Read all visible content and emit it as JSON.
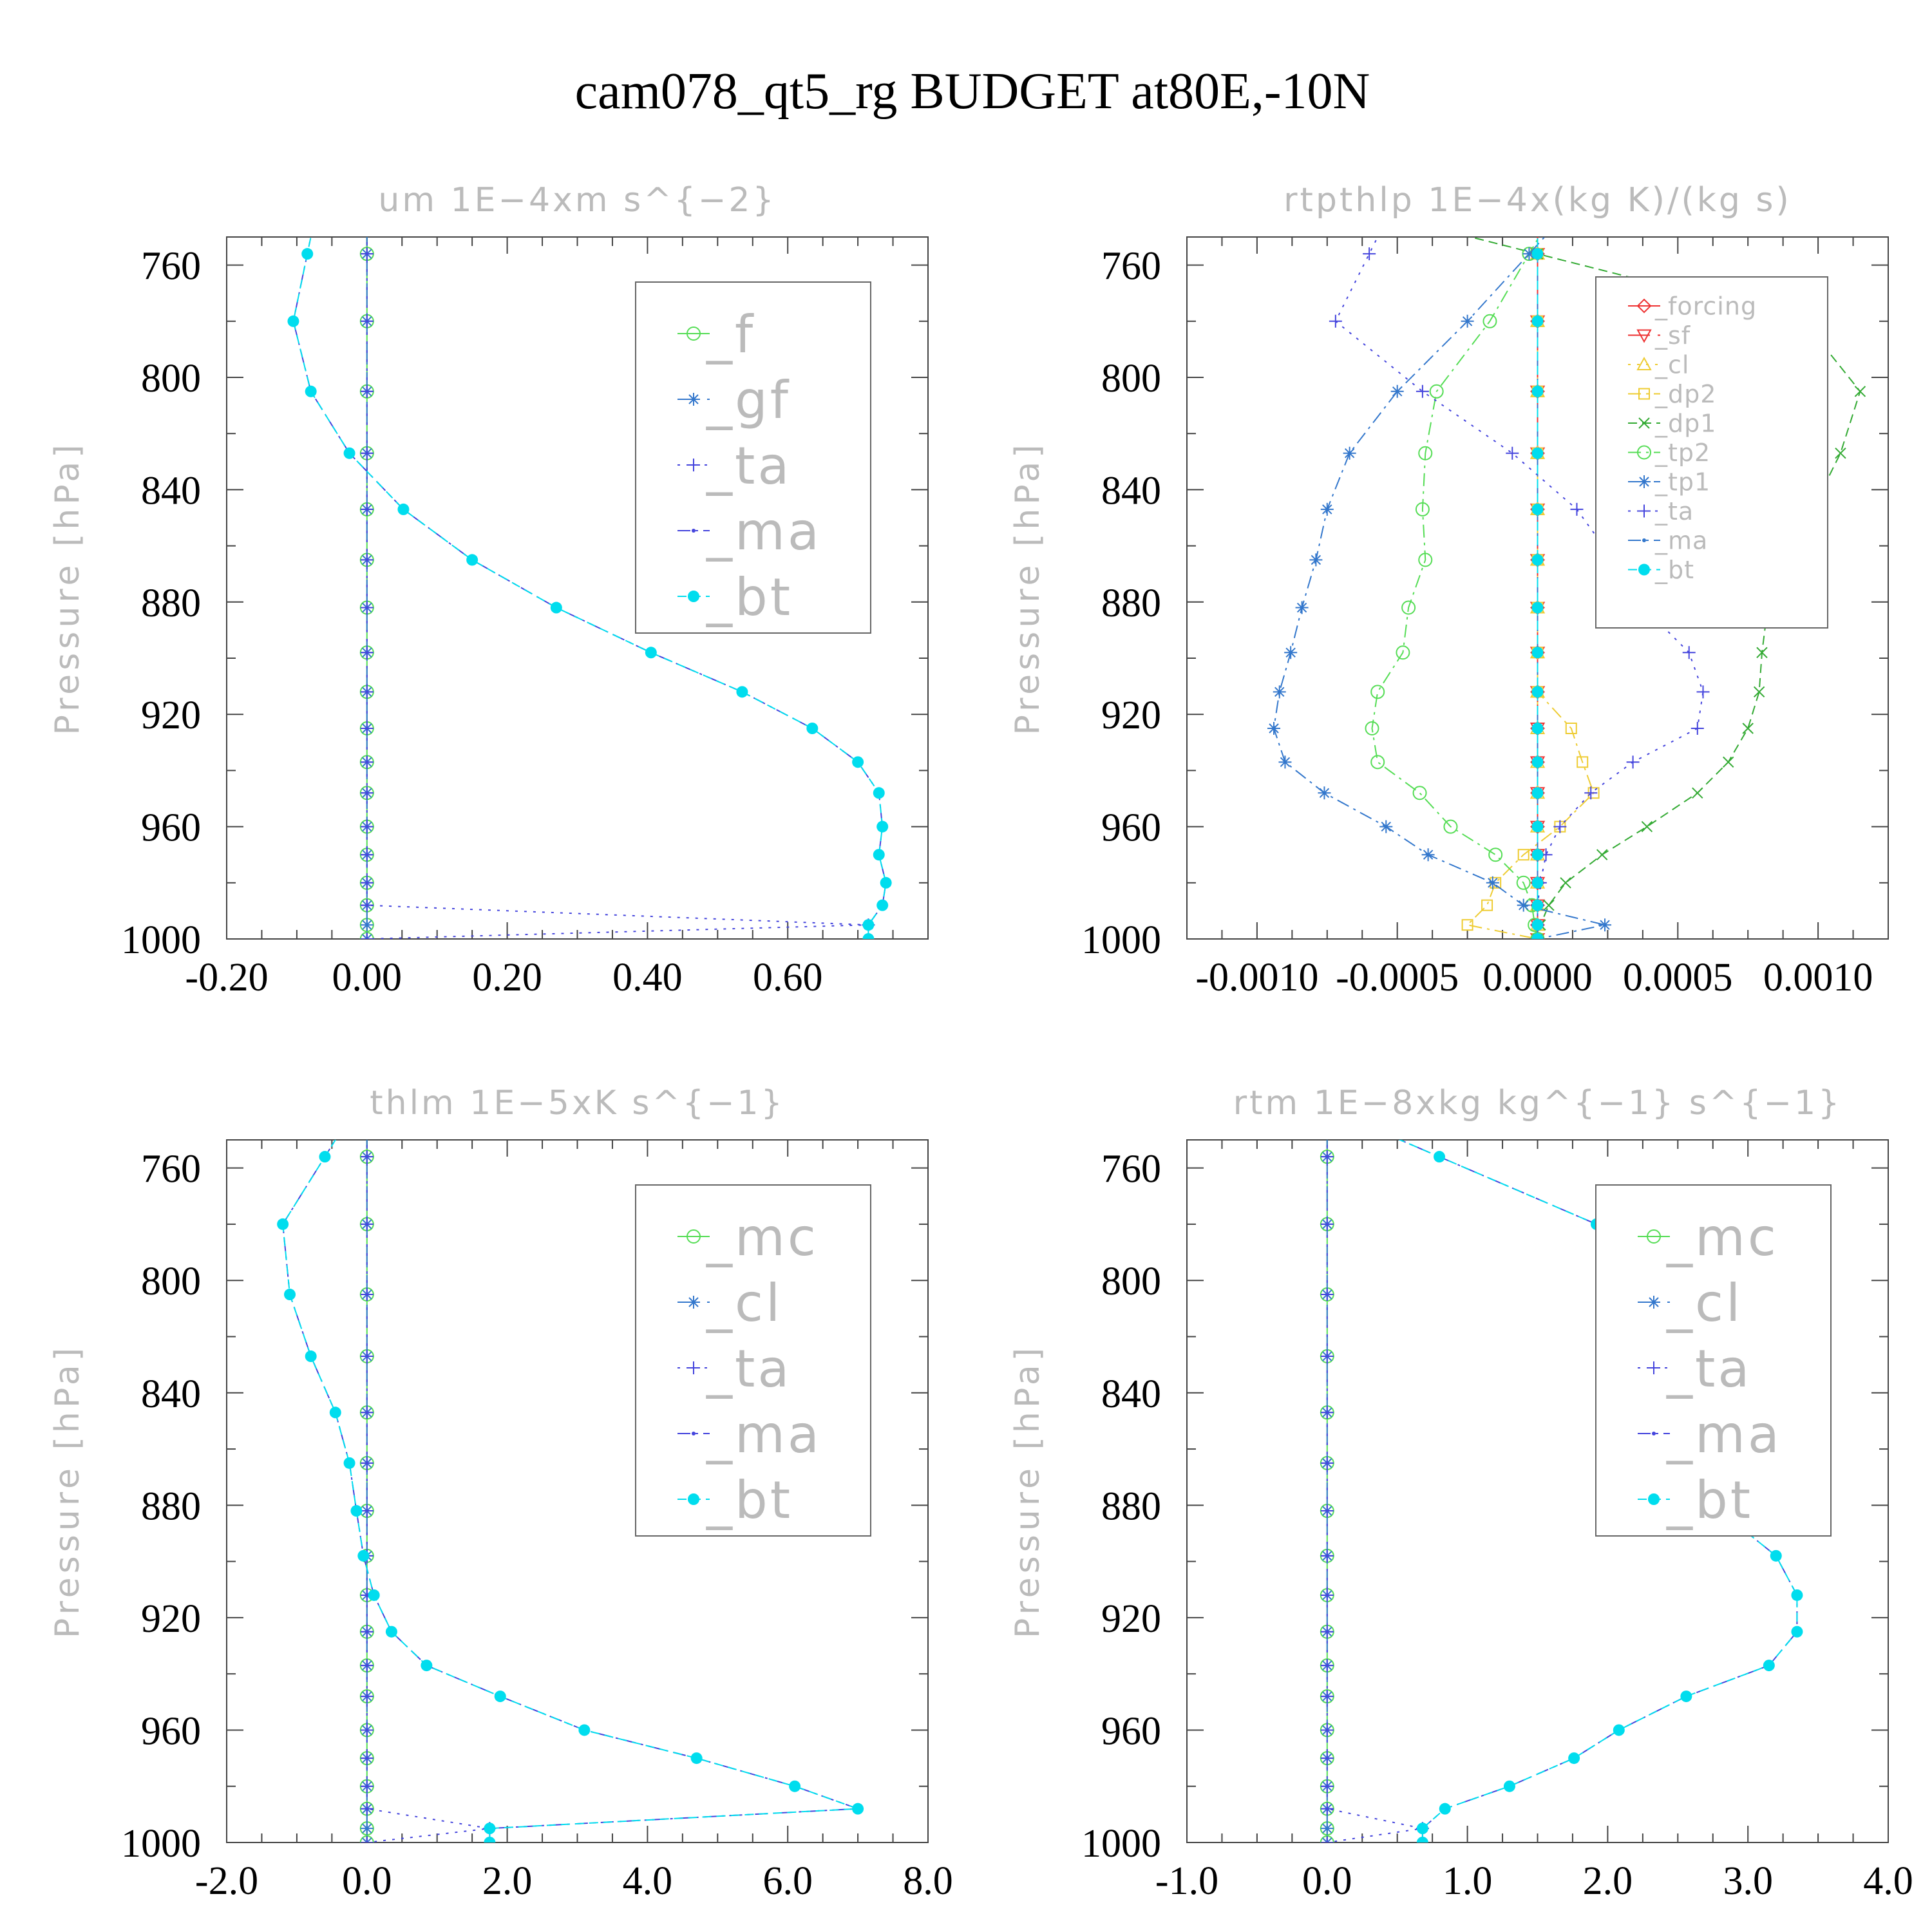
{
  "figure": {
    "title": "cam078_qt5_rg  BUDGET at80E,-10N"
  },
  "chart_data": [
    {
      "type": "line",
      "id": "um",
      "title": "um   1E−4xm s^{−2}",
      "ylabel": "Pressure [hPa]",
      "xlim": [
        -0.2,
        0.8
      ],
      "ylim": [
        1000,
        750
      ],
      "xticks": [
        "-0.20",
        "0.00",
        "0.20",
        "0.40",
        "0.60"
      ],
      "xtick_values": [
        -0.2,
        0,
        0.2,
        0.4,
        0.6
      ],
      "yticks": [
        760,
        800,
        840,
        880,
        920,
        960,
        1000
      ],
      "legend_position": "top-right",
      "legend_scale": "large",
      "y": [
        756,
        780,
        805,
        827,
        847,
        865,
        882,
        898,
        912,
        925,
        937,
        948,
        960,
        970,
        980,
        988,
        995,
        1000
      ],
      "series": [
        {
          "name": "_f",
          "color": "#55dd55",
          "marker": "circle",
          "dash": "none",
          "values": [
            0,
            0,
            0,
            0,
            0,
            0,
            0,
            0,
            0,
            0,
            0,
            0,
            0,
            0,
            0,
            0,
            0,
            0
          ]
        },
        {
          "name": "_gf",
          "color": "#3377cc",
          "marker": "star",
          "dash": "longdash",
          "values": [
            0,
            0,
            0,
            0,
            0,
            0,
            0,
            0,
            0,
            0,
            0,
            0,
            0,
            0,
            0,
            0,
            0,
            0
          ]
        },
        {
          "name": "_ta",
          "color": "#4444dd",
          "marker": "plus",
          "dash": "dot",
          "values": [
            0,
            0,
            0,
            0,
            0,
            0,
            0,
            0,
            0,
            0,
            0,
            0,
            0,
            0,
            0,
            0,
            0.715,
            0
          ]
        },
        {
          "name": "_ma",
          "color": "#4444dd",
          "marker": "dot",
          "dash": "dashdot",
          "values": [
            -0.085,
            -0.105,
            -0.08,
            -0.025,
            0.052,
            0.15,
            0.27,
            0.405,
            0.535,
            0.635,
            0.7,
            0.73,
            0.735,
            0.73,
            0.74,
            0.735,
            0.715,
            0.715
          ]
        },
        {
          "name": "_bt",
          "color": "#00ddee",
          "marker": "bigdot",
          "dash": "dash",
          "values": [
            -0.085,
            -0.105,
            -0.08,
            -0.025,
            0.052,
            0.15,
            0.27,
            0.405,
            0.535,
            0.635,
            0.7,
            0.73,
            0.735,
            0.73,
            0.74,
            0.735,
            0.715,
            0.715
          ]
        }
      ]
    },
    {
      "type": "line",
      "id": "rtpthlp",
      "title": "rtpthlp   1E−4x(kg K)/(kg s)",
      "ylabel": "Pressure [hPa]",
      "xlim": [
        -0.00125,
        0.00125
      ],
      "ylim": [
        1000,
        750
      ],
      "xticks": [
        "-0.0010",
        "-0.0005",
        "0.0000",
        "0.0005",
        "0.0010"
      ],
      "xtick_values": [
        -0.001,
        -0.0005,
        0,
        0.0005,
        0.001
      ],
      "yticks": [
        760,
        800,
        840,
        880,
        920,
        960,
        1000
      ],
      "legend_position": "top-right",
      "legend_scale": "small",
      "y": [
        756,
        780,
        805,
        827,
        847,
        865,
        882,
        898,
        912,
        925,
        937,
        948,
        960,
        970,
        980,
        988,
        995,
        1000
      ],
      "series": [
        {
          "name": "_forcing",
          "color": "#ee3333",
          "marker": "diamond",
          "dash": "none",
          "values": [
            0,
            0,
            0,
            0,
            0,
            0,
            0,
            0,
            0,
            0,
            0,
            0,
            0,
            0,
            0,
            0,
            0,
            0
          ]
        },
        {
          "name": "_sf",
          "color": "#ee3333",
          "marker": "triangle-down",
          "dash": "longdash",
          "values": [
            0,
            0,
            0,
            0,
            0,
            0,
            0,
            0,
            0,
            0,
            0,
            0,
            0,
            0,
            0,
            0,
            0,
            0
          ]
        },
        {
          "name": "_cl",
          "color": "#eecc33",
          "marker": "triangle",
          "dash": "dot",
          "values": [
            0,
            0,
            0,
            0,
            0,
            0,
            0,
            0,
            0,
            0,
            0,
            0,
            0,
            0,
            0,
            0,
            0,
            0
          ]
        },
        {
          "name": "_dp2",
          "color": "#eecc33",
          "marker": "square",
          "dash": "dashdot",
          "values": [
            0,
            0,
            0,
            0,
            0,
            0,
            0,
            0,
            0,
            0.00012,
            0.00016,
            0.0002,
            8e-05,
            -5e-05,
            -0.00015,
            -0.00018,
            -0.00025,
            0
          ]
        },
        {
          "name": "_dp1",
          "color": "#33aa33",
          "marker": "cross",
          "dash": "dash",
          "values": [
            0,
            0.00095,
            0.00115,
            0.00108,
            0.00098,
            0.00087,
            0.00082,
            0.0008,
            0.00079,
            0.00075,
            0.00068,
            0.00057,
            0.00039,
            0.00023,
            0.0001,
            4e-05,
            1e-05,
            0
          ]
        },
        {
          "name": "_tp2",
          "color": "#55dd55",
          "marker": "circle",
          "dash": "dashdot",
          "values": [
            -3e-05,
            -0.00017,
            -0.00036,
            -0.0004,
            -0.00041,
            -0.0004,
            -0.00046,
            -0.00048,
            -0.00057,
            -0.00059,
            -0.00057,
            -0.00042,
            -0.00031,
            -0.00015,
            -5e-05,
            -2e-05,
            -1e-05,
            0
          ]
        },
        {
          "name": "_tp1",
          "color": "#3377cc",
          "marker": "star",
          "dash": "dashdot",
          "values": [
            -3e-05,
            -0.00025,
            -0.0005,
            -0.00067,
            -0.00075,
            -0.00079,
            -0.00084,
            -0.00088,
            -0.00092,
            -0.00094,
            -0.0009,
            -0.00076,
            -0.00054,
            -0.00039,
            -0.00016,
            -5e-05,
            0.00024,
            0
          ]
        },
        {
          "name": "_ta",
          "color": "#4444dd",
          "marker": "plus",
          "dash": "dot",
          "values": [
            -0.0006,
            -0.00072,
            -0.00041,
            -9e-05,
            0.00014,
            0.00027,
            0.00038,
            0.00054,
            0.00059,
            0.00057,
            0.00034,
            0.00019,
            8e-05,
            3e-05,
            1e-05,
            0,
            0,
            0
          ]
        },
        {
          "name": "_ma",
          "color": "#3377cc",
          "marker": "dot",
          "dash": "dashdot",
          "values": [
            0,
            0,
            0,
            0,
            0,
            0,
            0,
            0,
            0,
            0,
            0,
            0,
            0,
            0,
            0,
            0,
            0,
            0
          ]
        },
        {
          "name": "_bt",
          "color": "#00ddee",
          "marker": "bigdot",
          "dash": "dash",
          "values": [
            0,
            0,
            0,
            0,
            0,
            0,
            0,
            0,
            0,
            0,
            0,
            0,
            0,
            0,
            0,
            0,
            0,
            0
          ]
        }
      ]
    },
    {
      "type": "line",
      "id": "thlm",
      "title": "thlm   1E−5xK s^{−1}",
      "ylabel": "Pressure [hPa]",
      "xlim": [
        -2.0,
        8.0
      ],
      "ylim": [
        1000,
        750
      ],
      "xticks": [
        "-2.0",
        "0.0",
        "2.0",
        "4.0",
        "6.0",
        "8.0"
      ],
      "xtick_values": [
        -2,
        0,
        2,
        4,
        6,
        8
      ],
      "yticks": [
        760,
        800,
        840,
        880,
        920,
        960,
        1000
      ],
      "legend_position": "top-right",
      "legend_scale": "large",
      "y": [
        756,
        780,
        805,
        827,
        847,
        865,
        882,
        898,
        912,
        925,
        937,
        948,
        960,
        970,
        980,
        988,
        995,
        1000
      ],
      "series": [
        {
          "name": "_mc",
          "color": "#55dd55",
          "marker": "circle",
          "dash": "none",
          "values": [
            0,
            0,
            0,
            0,
            0,
            0,
            0,
            0,
            0,
            0,
            0,
            0,
            0,
            0,
            0,
            0,
            0,
            0
          ]
        },
        {
          "name": "_cl",
          "color": "#3377cc",
          "marker": "star",
          "dash": "longdash",
          "values": [
            0,
            0,
            0,
            0,
            0,
            0,
            0,
            0,
            0,
            0,
            0,
            0,
            0,
            0,
            0,
            0,
            0,
            0
          ]
        },
        {
          "name": "_ta",
          "color": "#4444dd",
          "marker": "plus",
          "dash": "dot",
          "values": [
            0,
            0,
            0,
            0,
            0,
            0,
            0,
            0,
            0,
            0,
            0,
            0,
            0,
            0,
            0,
            0,
            1.75,
            0
          ]
        },
        {
          "name": "_ma",
          "color": "#4444dd",
          "marker": "dot",
          "dash": "dashdot",
          "values": [
            -0.6,
            -1.2,
            -1.1,
            -0.8,
            -0.45,
            -0.25,
            -0.15,
            -0.05,
            0.1,
            0.35,
            0.85,
            1.9,
            3.1,
            4.7,
            6.1,
            7.0,
            1.75,
            1.75
          ]
        },
        {
          "name": "_bt",
          "color": "#00ddee",
          "marker": "bigdot",
          "dash": "dash",
          "values": [
            -0.6,
            -1.2,
            -1.1,
            -0.8,
            -0.45,
            -0.25,
            -0.15,
            -0.05,
            0.1,
            0.35,
            0.85,
            1.9,
            3.1,
            4.7,
            6.1,
            7.0,
            1.75,
            1.75
          ]
        }
      ]
    },
    {
      "type": "line",
      "id": "rtm",
      "title": "rtm   1E−8xkg kg^{−1} s^{−1}",
      "ylabel": "Pressure [hPa]",
      "xlim": [
        -1.0,
        4.0
      ],
      "ylim": [
        1000,
        750
      ],
      "xticks": [
        "-1.0",
        "0.0",
        "1.0",
        "2.0",
        "3.0",
        "4.0"
      ],
      "xtick_values": [
        -1,
        0,
        1,
        2,
        3,
        4
      ],
      "yticks": [
        760,
        800,
        840,
        880,
        920,
        960,
        1000
      ],
      "legend_position": "top-right",
      "legend_scale": "large",
      "y": [
        756,
        780,
        805,
        827,
        847,
        865,
        882,
        898,
        912,
        925,
        937,
        948,
        960,
        970,
        980,
        988,
        995,
        1000
      ],
      "series": [
        {
          "name": "_mc",
          "color": "#55dd55",
          "marker": "circle",
          "dash": "none",
          "values": [
            0,
            0,
            0,
            0,
            0,
            0,
            0,
            0,
            0,
            0,
            0,
            0,
            0,
            0,
            0,
            0,
            0,
            0
          ]
        },
        {
          "name": "_cl",
          "color": "#3377cc",
          "marker": "star",
          "dash": "longdash",
          "values": [
            0,
            0,
            0,
            0,
            0,
            0,
            0,
            0,
            0,
            0,
            0,
            0,
            0,
            0,
            0,
            0,
            0,
            0
          ]
        },
        {
          "name": "_ta",
          "color": "#4444dd",
          "marker": "plus",
          "dash": "dot",
          "values": [
            0,
            0,
            0,
            0,
            0,
            0,
            0,
            0,
            0,
            0,
            0,
            0,
            0,
            0,
            0,
            0,
            0.68,
            0
          ]
        },
        {
          "name": "_ma",
          "color": "#4444dd",
          "marker": "dot",
          "dash": "dashdot",
          "values": [
            0.8,
            1.92,
            2.48,
            2.42,
            2.37,
            2.49,
            2.8,
            3.2,
            3.35,
            3.35,
            3.15,
            2.56,
            2.08,
            1.76,
            1.3,
            0.84,
            0.68,
            0.68
          ]
        },
        {
          "name": "_bt",
          "color": "#00ddee",
          "marker": "bigdot",
          "dash": "dash",
          "values": [
            0.8,
            1.92,
            2.48,
            2.42,
            2.37,
            2.49,
            2.8,
            3.2,
            3.35,
            3.35,
            3.15,
            2.56,
            2.08,
            1.76,
            1.3,
            0.84,
            0.68,
            0.68
          ]
        }
      ]
    }
  ]
}
